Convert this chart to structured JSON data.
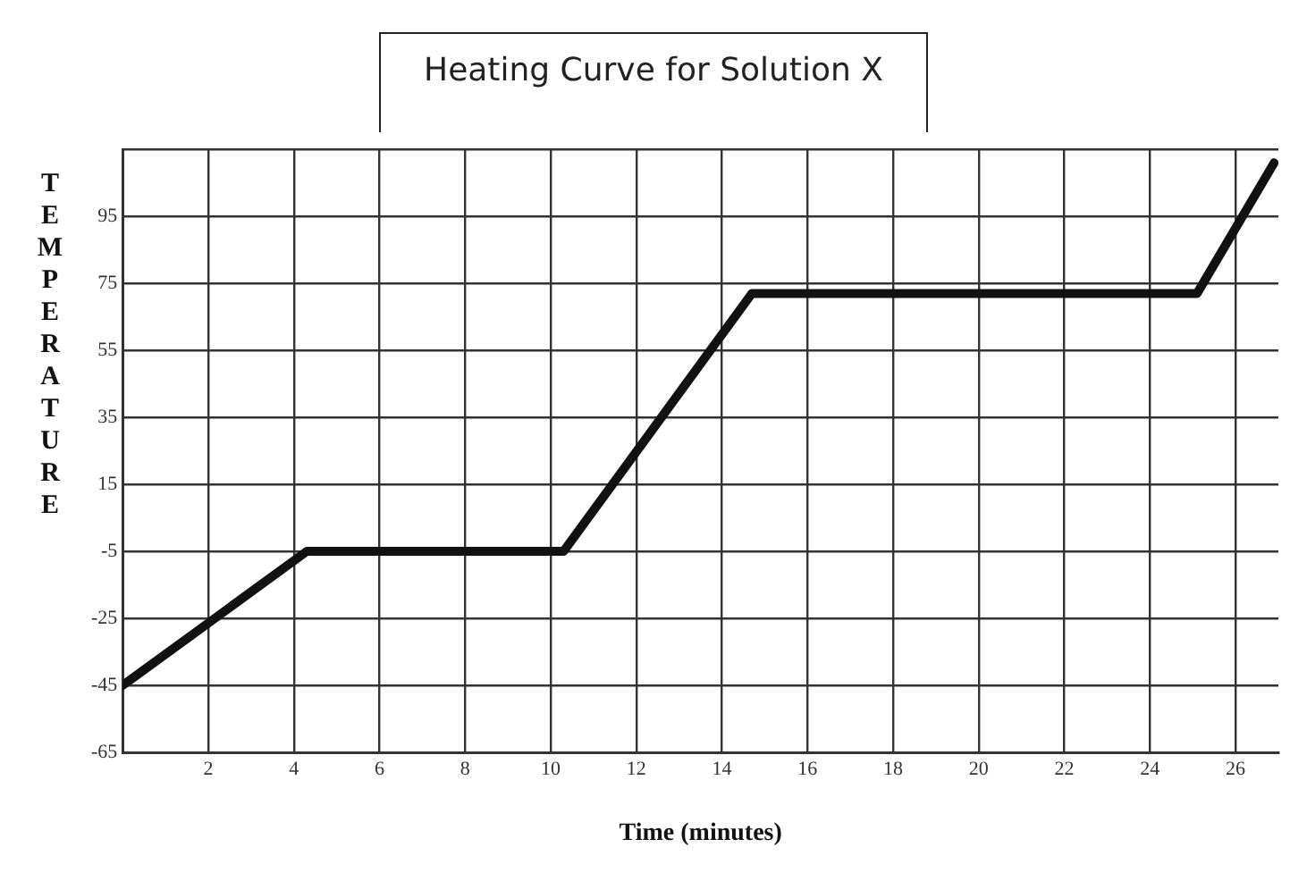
{
  "chart_data": {
    "type": "line",
    "title": "Heating Curve for Solution X",
    "xlabel": "Time (minutes)",
    "ylabel": "TEMPERATURE",
    "series": [
      {
        "color": "#111111",
        "x": [
          0,
          4.3,
          10.3,
          14.7,
          25.1,
          26.9
        ],
        "values": [
          -45,
          -5,
          -5,
          72,
          72,
          111
        ]
      }
    ],
    "xlim": [
      0,
      27
    ],
    "xticks": [
      {
        "value": 0,
        "label": null
      },
      2,
      4,
      6,
      8,
      10,
      12,
      14,
      16,
      18,
      20,
      22,
      24,
      26
    ],
    "ylim": [
      -65,
      115
    ],
    "yticks": [
      -65,
      -45,
      -25,
      -5,
      15,
      35,
      55,
      75,
      95,
      {
        "value": 115,
        "label": null
      }
    ],
    "grid": true,
    "legend": false,
    "marker": "none",
    "line_style": "solid"
  }
}
